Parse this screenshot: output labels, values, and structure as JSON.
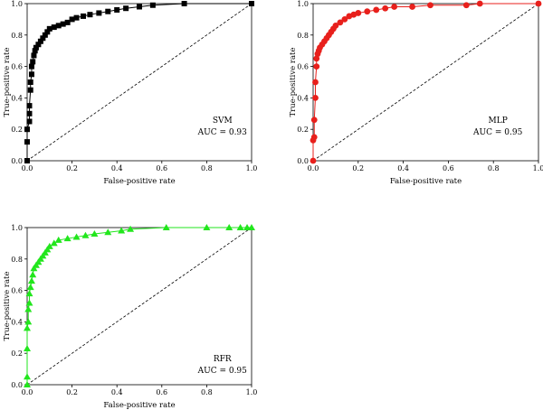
{
  "chart_data": [
    {
      "type": "line",
      "name": "SVM",
      "annotation": "SVM",
      "auc_label": "AUC = 0.93",
      "xlabel": "False-positive rate",
      "ylabel": "True-positive rate",
      "xlim": [
        0,
        1
      ],
      "ylim": [
        0,
        1
      ],
      "xticks": [
        "0.0",
        "0.2",
        "0.4",
        "0.6",
        "0.8",
        "1.0"
      ],
      "yticks": [
        "0.0",
        "0.2",
        "0.4",
        "0.6",
        "0.8",
        "1.0"
      ],
      "color": "#000000",
      "marker": "square",
      "diagonal": true,
      "x": [
        0,
        0,
        0,
        0.01,
        0.01,
        0.01,
        0.015,
        0.015,
        0.02,
        0.02,
        0.025,
        0.03,
        0.035,
        0.04,
        0.05,
        0.06,
        0.07,
        0.08,
        0.09,
        0.1,
        0.12,
        0.14,
        0.16,
        0.18,
        0.2,
        0.22,
        0.25,
        0.28,
        0.32,
        0.36,
        0.4,
        0.44,
        0.5,
        0.56,
        0.7,
        1.0
      ],
      "y": [
        0,
        0.12,
        0.2,
        0.25,
        0.3,
        0.35,
        0.45,
        0.5,
        0.55,
        0.6,
        0.63,
        0.67,
        0.7,
        0.72,
        0.74,
        0.76,
        0.78,
        0.8,
        0.82,
        0.84,
        0.85,
        0.86,
        0.87,
        0.88,
        0.9,
        0.91,
        0.92,
        0.93,
        0.94,
        0.95,
        0.96,
        0.97,
        0.98,
        0.99,
        1.0,
        1.0
      ]
    },
    {
      "type": "line",
      "name": "MLP",
      "annotation": "MLP",
      "auc_label": "AUC = 0.95",
      "xlabel": "False-positive rate",
      "ylabel": "True-positive rate",
      "xlim": [
        0,
        1
      ],
      "ylim": [
        0,
        1
      ],
      "xticks": [
        "0.0",
        "0.2",
        "0.4",
        "0.6",
        "0.8",
        "1.0"
      ],
      "yticks": [
        "0.0",
        "0.2",
        "0.4",
        "0.6",
        "0.8",
        "1.0"
      ],
      "color": "#e8201c",
      "marker": "circle",
      "diagonal": true,
      "x": [
        0,
        0,
        0.005,
        0.005,
        0.01,
        0.01,
        0.015,
        0.015,
        0.02,
        0.025,
        0.03,
        0.04,
        0.05,
        0.06,
        0.07,
        0.08,
        0.09,
        0.1,
        0.12,
        0.14,
        0.16,
        0.18,
        0.2,
        0.24,
        0.28,
        0.32,
        0.36,
        0.44,
        0.52,
        0.68,
        0.74,
        1.0
      ],
      "y": [
        0,
        0.13,
        0.15,
        0.26,
        0.4,
        0.5,
        0.6,
        0.65,
        0.68,
        0.7,
        0.72,
        0.74,
        0.76,
        0.78,
        0.8,
        0.82,
        0.84,
        0.86,
        0.88,
        0.9,
        0.92,
        0.93,
        0.94,
        0.95,
        0.96,
        0.97,
        0.98,
        0.98,
        0.99,
        0.99,
        1.0,
        1.0
      ]
    },
    {
      "type": "line",
      "name": "RFR",
      "annotation": "RFR",
      "auc_label": "AUC = 0.95",
      "xlabel": "False-positive rate",
      "ylabel": "True-positive rate",
      "xlim": [
        0,
        1
      ],
      "ylim": [
        0,
        1
      ],
      "xticks": [
        "0.0",
        "0.2",
        "0.4",
        "0.6",
        "0.8",
        "1.0"
      ],
      "yticks": [
        "0.0",
        "0.2",
        "0.4",
        "0.6",
        "0.8",
        "1.0"
      ],
      "color": "#22e61d",
      "marker": "triangle",
      "diagonal": true,
      "x": [
        0,
        0,
        0,
        0,
        0.005,
        0.005,
        0.01,
        0.01,
        0.015,
        0.02,
        0.025,
        0.03,
        0.04,
        0.05,
        0.06,
        0.07,
        0.08,
        0.09,
        0.1,
        0.12,
        0.14,
        0.18,
        0.22,
        0.26,
        0.3,
        0.36,
        0.42,
        0.46,
        0.62,
        0.8,
        0.9,
        0.95,
        0.98,
        1.0
      ],
      "y": [
        0,
        0.05,
        0.23,
        0.36,
        0.4,
        0.48,
        0.52,
        0.58,
        0.62,
        0.66,
        0.7,
        0.74,
        0.76,
        0.78,
        0.8,
        0.82,
        0.84,
        0.86,
        0.88,
        0.9,
        0.92,
        0.93,
        0.94,
        0.95,
        0.96,
        0.97,
        0.98,
        0.99,
        1.0,
        1.0,
        1.0,
        1.0,
        1.0,
        1.0
      ]
    }
  ]
}
